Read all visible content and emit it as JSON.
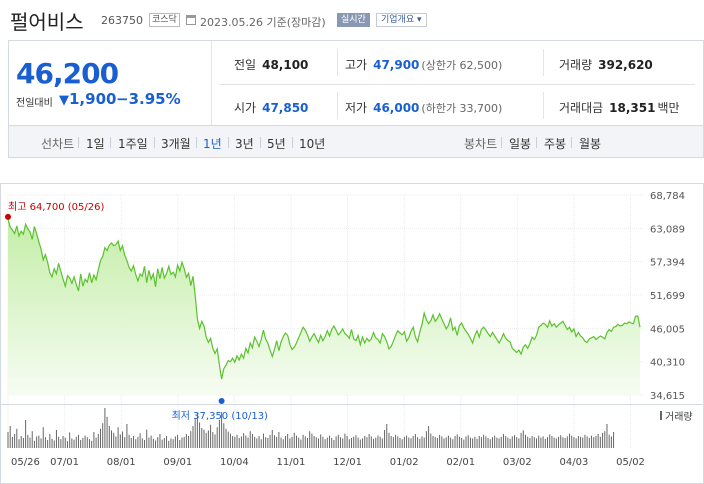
{
  "header": {
    "name": "펄어비스",
    "code": "263750",
    "market": "코스닥",
    "date": "2023.05.26 기준(장마감)",
    "realtime": "실시간",
    "corp_overview": "기업개요 ▾"
  },
  "summary": {
    "price": "46,200",
    "change_label": "전일대비",
    "change_arrow": "▼",
    "change_value": "1,900",
    "change_pct": "−3.95%",
    "prev_close_label": "전일",
    "prev_close": "48,100",
    "open_label": "시가",
    "open": "47,850",
    "high_label": "고가",
    "high": "47,900",
    "upper_limit": "(상한가 62,500)",
    "low_label": "저가",
    "low": "46,000",
    "lower_limit": "(하한가 33,700)",
    "volume_label": "거래량",
    "volume": "392,620",
    "amount_label": "거래대금",
    "amount": "18,351",
    "amount_unit": "백만"
  },
  "toolbar": {
    "line_label": "선차트",
    "periods": [
      "1일",
      "1주일",
      "3개월",
      "1년",
      "3년",
      "5년",
      "10년"
    ],
    "active_period": "1년",
    "candle_label": "봉차트",
    "candles": [
      "일봉",
      "주봉",
      "월봉"
    ]
  },
  "colors": {
    "accent": "#1a5fd1",
    "line": "#5cc12e",
    "area_top": "#c7efae",
    "high_marker": "#cc0000",
    "low_marker": "#1a5fd1",
    "volume": "#666666"
  },
  "chart_data": {
    "type": "area",
    "ylim": [
      34615,
      68784
    ],
    "y_ticks": [
      "68,784",
      "63,089",
      "57,394",
      "51,699",
      "46,005",
      "40,310",
      "34,615"
    ],
    "x_ticks": [
      "05/26",
      "07/01",
      "08/01",
      "09/01",
      "10/04",
      "11/01",
      "12/01",
      "01/02",
      "02/01",
      "03/02",
      "04/03",
      "05/02"
    ],
    "high_annotation": "최고 64,700 (05/26)",
    "low_annotation": "최저 37,350 (10/13)",
    "volume_legend": "거래량",
    "series": [
      {
        "name": "",
        "values": [
          64700,
          63300,
          62800,
          62200,
          63500,
          61800,
          62600,
          62100,
          63800,
          63000,
          62500,
          61200,
          63400,
          62200,
          60800,
          59600,
          57700,
          58600,
          57300,
          55500,
          54800,
          56200,
          55300,
          57100,
          55700,
          54400,
          53200,
          55000,
          54600,
          53700,
          54800,
          53500,
          52400,
          55300,
          53200,
          54400,
          53900,
          55500,
          53800,
          55100,
          54300,
          56000,
          57600,
          58300,
          59800,
          59300,
          60200,
          60600,
          60100,
          60300,
          60900,
          59300,
          60100,
          58500,
          57600,
          56400,
          55800,
          56700,
          55200,
          54100,
          55300,
          54900,
          56600,
          53800,
          55900,
          54400,
          55300,
          53100,
          56200,
          54500,
          56400,
          54600,
          55400,
          56600,
          55200,
          55600,
          54800,
          56800,
          55800,
          57300,
          56200,
          54700,
          55400,
          53300,
          54900,
          51600,
          47600,
          46000,
          47200,
          46400,
          44500,
          43600,
          44300,
          42600,
          41700,
          42500,
          39800,
          37350,
          39100,
          39700,
          40500,
          40300,
          40900,
          40200,
          41300,
          40600,
          41600,
          40900,
          42600,
          41800,
          43500,
          42700,
          44500,
          43800,
          42900,
          44100,
          45700,
          44200,
          43500,
          42300,
          41200,
          42400,
          43900,
          42200,
          43700,
          44600,
          45200,
          44800,
          43200,
          42400,
          42800,
          43500,
          44400,
          45300,
          46200,
          45700,
          44900,
          43800,
          44500,
          45100,
          44300,
          43600,
          44800,
          43900,
          44600,
          45600,
          44700,
          45800,
          46400,
          45700,
          44900,
          45300,
          45900,
          45100,
          44800,
          44300,
          45800,
          44200,
          43900,
          44800,
          43200,
          44500,
          43500,
          44300,
          43800,
          44200,
          45300,
          44400,
          44100,
          43500,
          45100,
          44600,
          43700,
          42500,
          42900,
          43800,
          44800,
          45600,
          45200,
          44900,
          45400,
          43800,
          44400,
          45500,
          46200,
          44500,
          43700,
          45400,
          46700,
          48600,
          47500,
          46800,
          47300,
          48300,
          47200,
          47700,
          48500,
          47600,
          46800,
          45900,
          46500,
          47800,
          45700,
          46200,
          44800,
          46500,
          46900,
          46100,
          45500,
          45000,
          44300,
          43500,
          44800,
          45600,
          44500,
          45800,
          46200,
          45700,
          45100,
          44600,
          45300,
          44700,
          44100,
          43500,
          44200,
          45100,
          44300,
          43900,
          43700,
          42600,
          42200,
          41900,
          42300,
          41600,
          42800,
          43200,
          42600,
          43400,
          44500,
          44100,
          44800,
          46200,
          46500,
          46900,
          46700,
          46200,
          47300,
          46400,
          46800,
          46200,
          46600,
          46900,
          47200,
          46500,
          45800,
          46200,
          45400,
          45900,
          44600,
          45300,
          44700,
          44400,
          43800,
          43600,
          44200,
          44400,
          44600,
          44100,
          44400,
          44700,
          44500,
          44200,
          45300,
          45800,
          45500,
          46200,
          46300,
          46700,
          46400,
          46500,
          46900,
          46800,
          47100,
          46900,
          46800,
          48100,
          48100,
          46200
        ]
      },
      {
        "name": "거래량",
        "values": [
          40,
          55,
          28,
          35,
          48,
          22,
          30,
          25,
          70,
          33,
          26,
          42,
          18,
          29,
          31,
          24,
          52,
          27,
          20,
          35,
          23,
          19,
          45,
          28,
          22,
          30,
          26,
          17,
          39,
          24,
          21,
          28,
          33,
          20,
          25,
          31,
          27,
          22,
          18,
          40,
          26,
          35,
          48,
          62,
          100,
          78,
          55,
          44,
          38,
          29,
          52,
          34,
          41,
          27,
          60,
          33,
          25,
          30,
          22,
          28,
          37,
          24,
          20,
          46,
          26,
          31,
          23,
          19,
          27,
          35,
          21,
          25,
          30,
          18,
          24,
          22,
          29,
          33,
          20,
          26,
          28,
          35,
          30,
          42,
          55,
          72,
          88,
          64,
          50,
          46,
          38,
          44,
          58,
          40,
          34,
          52,
          70,
          90,
          62,
          48,
          41,
          36,
          30,
          28,
          33,
          25,
          29,
          37,
          31,
          26,
          42,
          35,
          28,
          24,
          30,
          22,
          36,
          27,
          25,
          33,
          45,
          32,
          28,
          40,
          26,
          22,
          30,
          35,
          24,
          28,
          38,
          31,
          26,
          21,
          33,
          29,
          25,
          42,
          36,
          30,
          27,
          24,
          34,
          28,
          22,
          26,
          31,
          25,
          20,
          29,
          33,
          27,
          24,
          36,
          30,
          22,
          25,
          28,
          32,
          26,
          21,
          24,
          30,
          27,
          35,
          29,
          23,
          26,
          31,
          28,
          24,
          45,
          60,
          38,
          30,
          27,
          33,
          29,
          25,
          22,
          28,
          31,
          26,
          24,
          30,
          35,
          27,
          23,
          29,
          26,
          42,
          55,
          36,
          30,
          28,
          25,
          33,
          29,
          24,
          27,
          31,
          26,
          22,
          30,
          34,
          28,
          25,
          21,
          29,
          32,
          26,
          24,
          28,
          23,
          30,
          27,
          33,
          29,
          25,
          22,
          27,
          31,
          26,
          24,
          28,
          35,
          30,
          26,
          23,
          29,
          32,
          27,
          24,
          38,
          44,
          33,
          28,
          25,
          30,
          27,
          24,
          31,
          26,
          29,
          23,
          27,
          34,
          30,
          26,
          24,
          28,
          32,
          27,
          25,
          29,
          36,
          31,
          27,
          24,
          30,
          28,
          26,
          33,
          29,
          25,
          31,
          27,
          30,
          35,
          28,
          38,
          42,
          60,
          33,
          29,
          40
        ]
      }
    ]
  }
}
